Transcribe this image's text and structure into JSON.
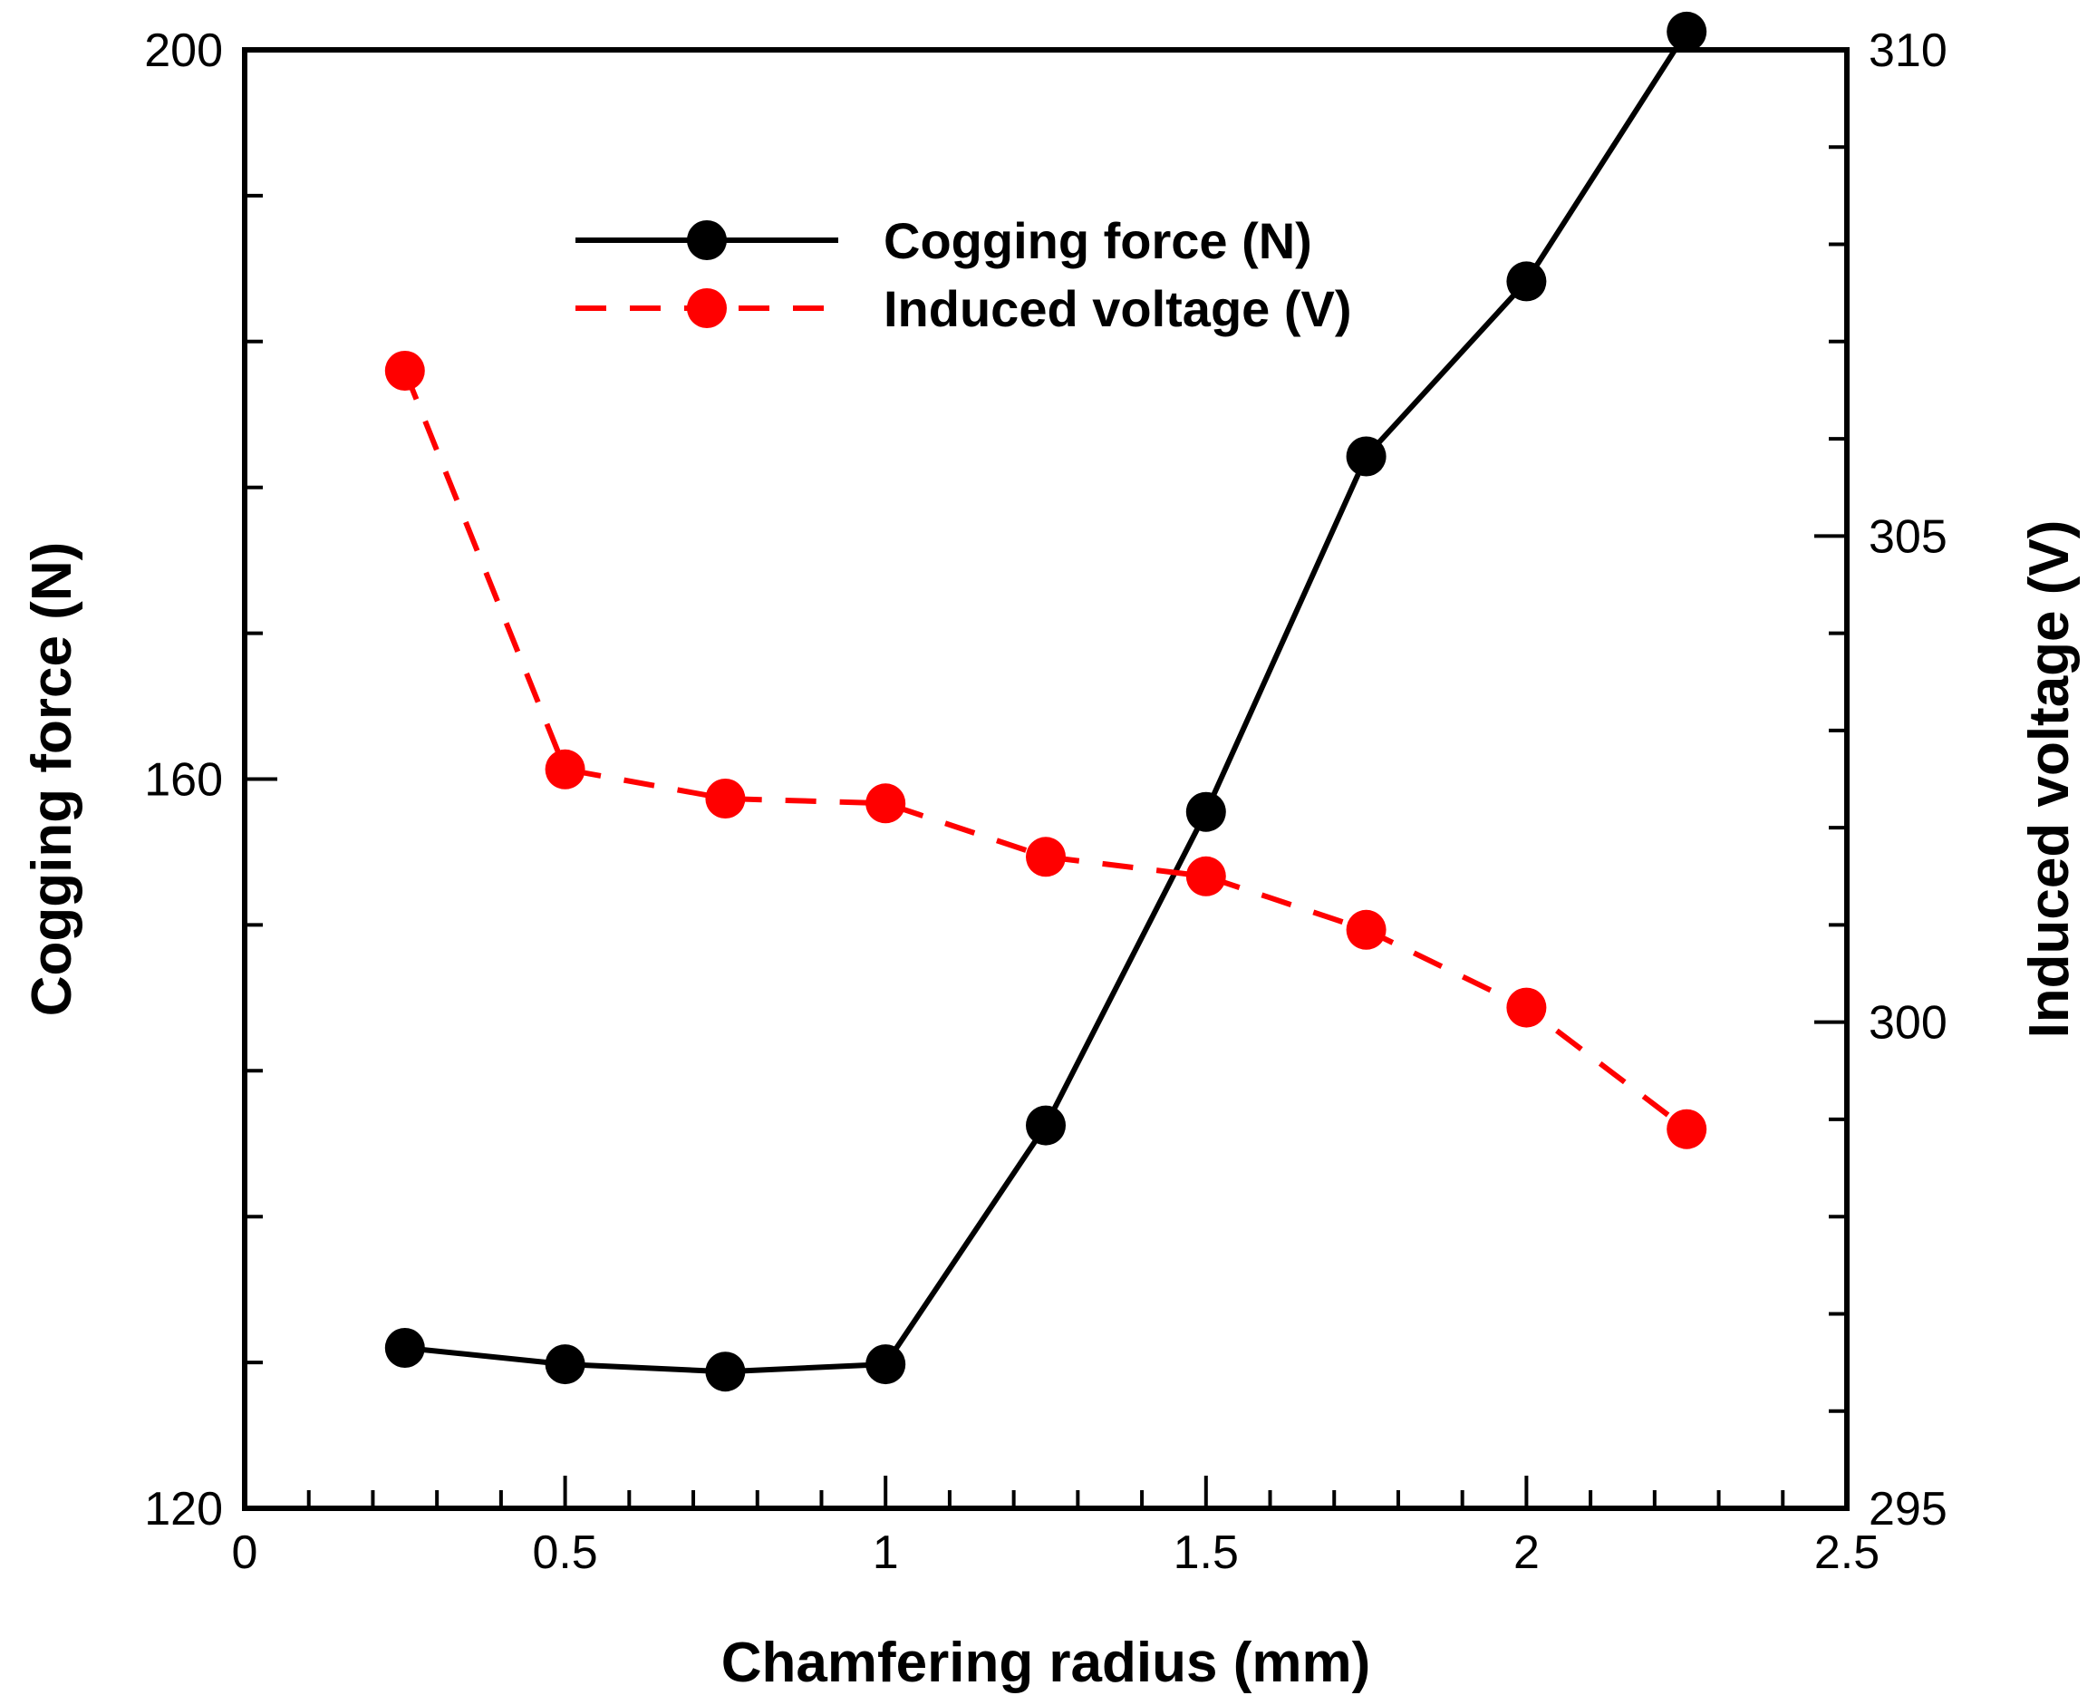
{
  "chart_data": {
    "type": "line",
    "title": "",
    "xlabel": "Chamfering radius (mm)",
    "ylabel": "Cogging force (N)",
    "y2label": "Induced voltage (V)",
    "xlim": [
      0,
      2.5
    ],
    "ylim": [
      120,
      200
    ],
    "y2lim": [
      295,
      310
    ],
    "grid": false,
    "legend_position": "top-center",
    "x_ticks": [
      0,
      0.5,
      1,
      1.5,
      2,
      2.5
    ],
    "x_tick_labels": [
      "0",
      "0.5",
      "1",
      "1.5",
      "2",
      "2.5"
    ],
    "y_ticks": [
      120,
      160,
      200
    ],
    "y_tick_labels": [
      "120",
      "160",
      "200"
    ],
    "y2_ticks": [
      295,
      300,
      305,
      310
    ],
    "y2_tick_labels": [
      "295",
      "300",
      "305",
      "310"
    ],
    "x": [
      0.25,
      0.5,
      0.75,
      1,
      1.25,
      1.5,
      1.75,
      2,
      2.25
    ],
    "series": [
      {
        "name": "Cogging force (N)",
        "axis": "left",
        "color": "#000000",
        "line_style": "solid",
        "values": [
          128.8,
          127.9,
          127.5,
          127.9,
          141.0,
          158.2,
          177.7,
          187.3,
          201.0
        ]
      },
      {
        "name": "Induced voltage (V)",
        "axis": "right",
        "color": "#ff0000",
        "line_style": "dashed",
        "values": [
          306.7,
          302.6,
          302.3,
          302.25,
          301.7,
          301.5,
          300.95,
          300.15,
          298.9
        ]
      }
    ]
  }
}
